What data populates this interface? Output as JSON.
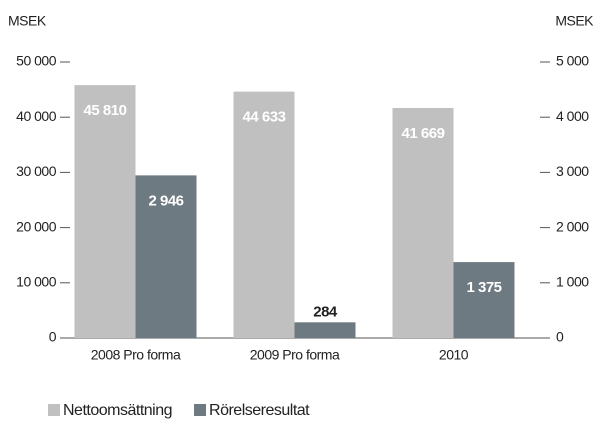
{
  "chart_data": {
    "type": "bar",
    "y_label": "MSEK",
    "y2_label": "MSEK",
    "categories": [
      "2008 Pro forma",
      "2009 Pro forma",
      "2010"
    ],
    "series": [
      {
        "name": "Nettoomsättning",
        "color": "#c0c0c0",
        "values": [
          45810,
          44633,
          41669
        ],
        "value_labels": [
          "45 810",
          "44 633",
          "41 669"
        ]
      },
      {
        "name": "Rörelseresultat",
        "color": "#6e7a81",
        "axis": "y2",
        "values": [
          2946,
          284,
          1375
        ],
        "value_labels": [
          "2 946",
          "284",
          "1 375"
        ]
      }
    ],
    "ylim": [
      0,
      50000
    ],
    "yticks": [
      0,
      {
        "value": 10000,
        "label": "10 000"
      },
      {
        "value": 20000,
        "label": "20 000"
      },
      {
        "value": 30000,
        "label": "30 000"
      },
      {
        "value": 40000,
        "label": "40 000"
      },
      {
        "value": 50000,
        "label": "50 000"
      }
    ],
    "y2lim": [
      0,
      5000
    ],
    "y2ticks": [
      0,
      {
        "value": 1000,
        "label": "1 000"
      },
      {
        "value": 2000,
        "label": "2 000"
      },
      {
        "value": 3000,
        "label": "3 000"
      },
      {
        "value": 4000,
        "label": "4 000"
      },
      {
        "value": 5000,
        "label": "5 000"
      }
    ],
    "legend": "bottom-left"
  }
}
